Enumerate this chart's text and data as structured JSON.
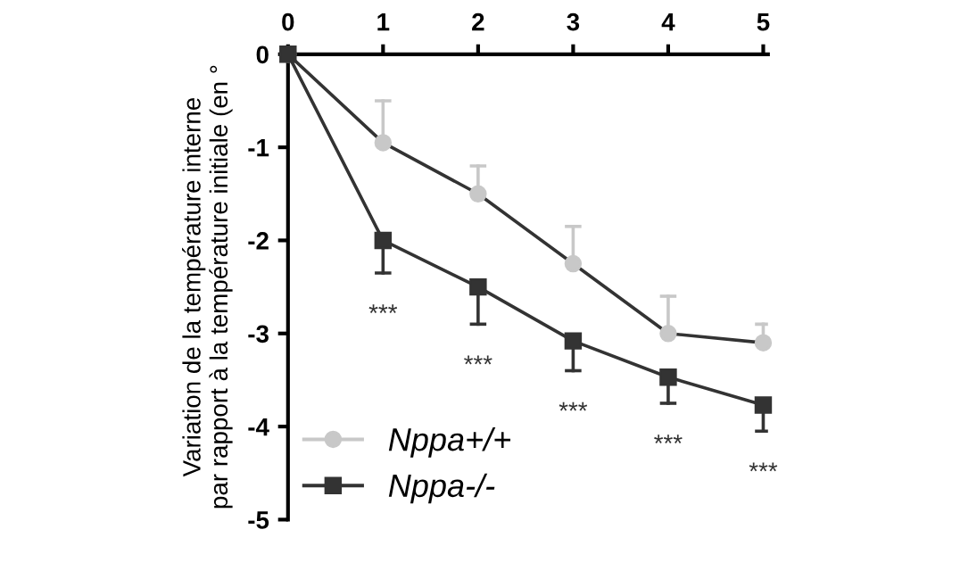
{
  "chart_data": {
    "type": "line",
    "ylabel": "Variation de la température interne\npar rapport à la température initiale (en °",
    "x": [
      0,
      1,
      2,
      3,
      4,
      5
    ],
    "series": [
      {
        "name": "Nppa+/+",
        "color": "#c8c8c8",
        "marker": "circle",
        "values": [
          0,
          -0.95,
          -1.5,
          -2.25,
          -3.0,
          -3.1
        ],
        "errors": [
          null,
          [
            -0.95,
            -0.5
          ],
          [
            -1.5,
            -1.2
          ],
          [
            -2.25,
            -1.85
          ],
          [
            -3.0,
            -2.6
          ],
          [
            -3.1,
            -2.9
          ]
        ]
      },
      {
        "name": "Nppa-/-",
        "color": "#333333",
        "marker": "square",
        "values": [
          0,
          -2.0,
          -2.5,
          -3.08,
          -3.47,
          -3.77
        ],
        "errors": [
          null,
          [
            -2.35,
            -2.0
          ],
          [
            -2.9,
            -2.5
          ],
          [
            -3.4,
            -3.08
          ],
          [
            -3.75,
            -3.47
          ],
          [
            -4.05,
            -3.77
          ]
        ]
      }
    ],
    "annotations": [
      "***",
      "***",
      "***",
      "***",
      "***"
    ],
    "xlim": [
      0,
      5.05
    ],
    "ylim": [
      -5,
      0
    ],
    "xticks": [
      0,
      1,
      2,
      3,
      4,
      5
    ],
    "yticks": [
      0,
      -1,
      -2,
      -3,
      -4,
      -5
    ],
    "grid": false,
    "legend": "bottom left",
    "line_style": "solid"
  }
}
